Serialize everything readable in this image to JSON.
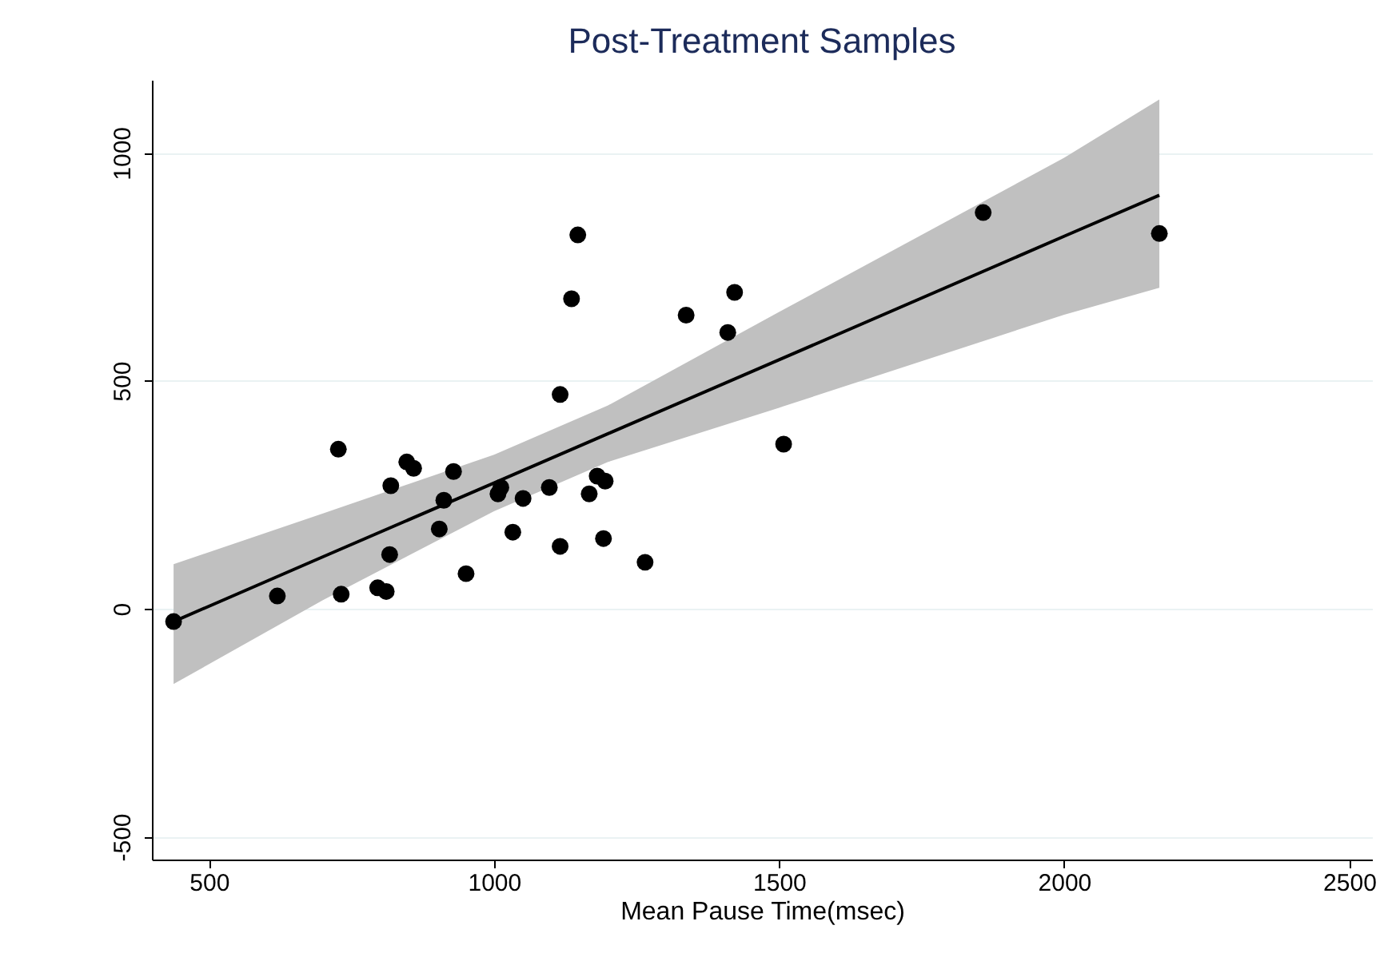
{
  "chart_data": {
    "type": "scatter",
    "title": "Post-Treatment Samples",
    "xlabel": "Mean Pause Time(msec)",
    "xlim": [
      400,
      2540
    ],
    "xticks": [
      500,
      1000,
      1500,
      2000,
      2500
    ],
    "ylim": [
      -550,
      1160
    ],
    "yticks": [
      -500,
      0,
      500,
      1000
    ],
    "grid": "y",
    "marker": "circle",
    "series": [
      {
        "type": "scatter",
        "color": "#000000",
        "x": [
          438,
          620,
          732,
          796,
          811,
          727,
          819,
          817,
          847,
          859,
          929,
          912,
          904,
          951,
          1007,
          1012,
          1051,
          1033,
          1097,
          1116,
          1116,
          1136,
          1147,
          1167,
          1181,
          1195,
          1192,
          1265,
          1337,
          1422,
          1410,
          1508,
          1858,
          2167
        ],
        "values": [
          -28,
          28,
          32,
          46,
          38,
          350,
          270,
          119,
          322,
          308,
          301,
          238,
          175,
          77,
          252,
          266,
          242,
          168,
          266,
          137,
          470,
          680,
          820,
          252,
          291,
          280,
          154,
          102,
          644,
          694,
          606,
          361,
          869,
          823
        ]
      },
      {
        "type": "line",
        "color": "#000000",
        "marker": "none",
        "x": [
          438,
          700,
          1000,
          1200,
          1500,
          2000,
          2167
        ],
        "values": [
          -28,
          114,
          276,
          384,
          546,
          817,
          907
        ],
        "lower": [
          -165,
          19,
          214,
          322,
          441,
          645,
          704
        ],
        "upper": [
          98,
          209,
          338,
          446,
          651,
          989,
          1117
        ]
      }
    ]
  }
}
